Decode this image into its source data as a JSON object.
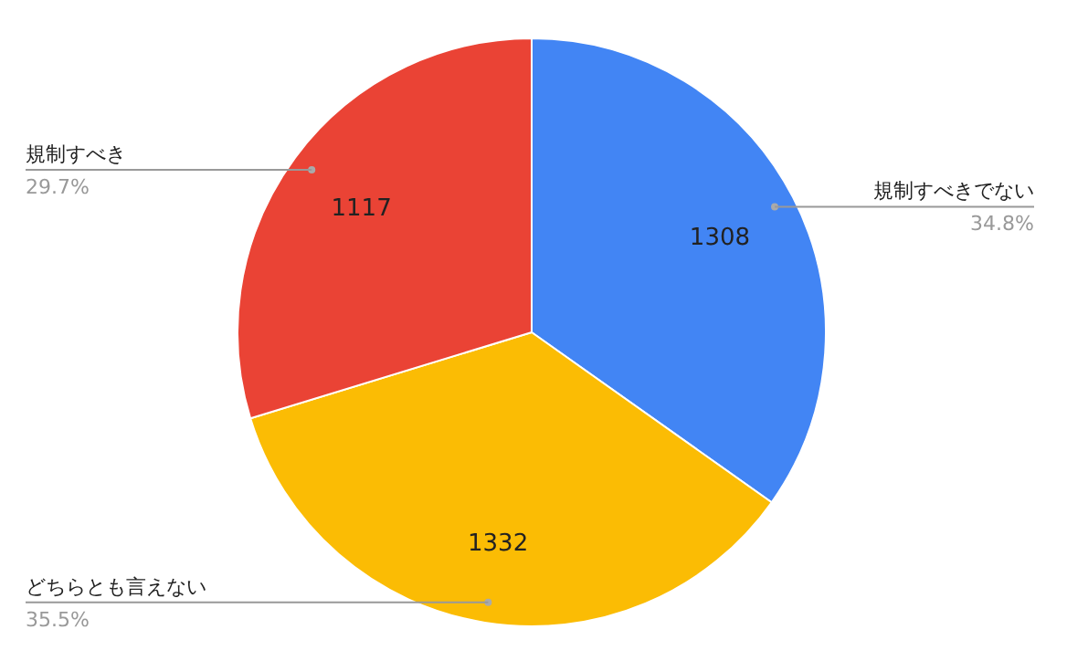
{
  "chart_data": {
    "type": "pie",
    "categories": [
      "規制すべきでない",
      "どちらとも言えない",
      "規制すべき"
    ],
    "values": [
      1308,
      1332,
      1117
    ],
    "colors": [
      "#4285f4",
      "#fbbc04",
      "#ea4335"
    ],
    "annotations": [
      "34.8%",
      "35.5%",
      "29.7%"
    ],
    "data_labels": true
  }
}
